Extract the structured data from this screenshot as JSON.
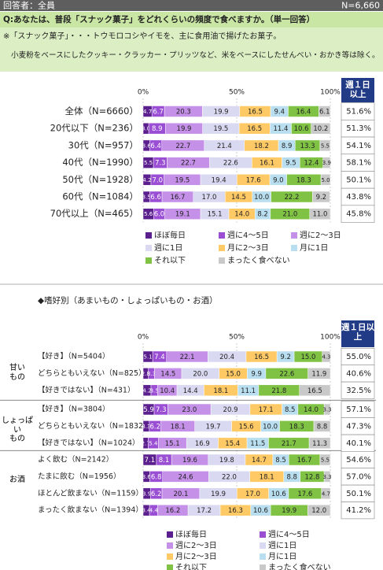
{
  "header": {
    "respondents": "回答者：全員",
    "n": "N=6,660"
  },
  "question": {
    "text": "Q:あなたは、普段「スナック菓子」をどれくらいの頻度で食べますか。（単一回答）",
    "note1": "※「スナック菓子」・・・トウモロコシやイモを、主に食用油で揚げたお菓子。",
    "note2": "小麦粉をベースにしたクッキー・クラッカー・プリッツなど、米をベースにしたせんべい・おかき等は除く。"
  },
  "chart_data": [
    {
      "type": "bar",
      "stacked": true,
      "orientation": "horizontal",
      "categories": [
        "全体（N=6660）",
        "20代以下（N=236）",
        "30代（N=957）",
        "40代（N=1990）",
        "50代（N=1928）",
        "60代（N=1084）",
        "70代以上（N=465）"
      ],
      "xlim": [
        0,
        100
      ],
      "xticks": [
        {
          "value": 0,
          "label": "0%"
        },
        {
          "value": 50,
          "label": "50%"
        },
        {
          "value": 100,
          "label": "100%"
        }
      ],
      "series": [
        {
          "name": "ほぼ毎日",
          "color": "#5b1f8e",
          "values": [
            4.7,
            3.0,
            3.6,
            5.5,
            4.2,
            3.5,
            5.6
          ],
          "value_labels": [
            "4.7",
            "3.0",
            "3.6",
            "5.5",
            "4.2",
            "3.5",
            "5.6"
          ]
        },
        {
          "name": "週に4～5日",
          "color": "#9a4ed4",
          "values": [
            6.7,
            8.9,
            6.4,
            7.3,
            7.0,
            6.6,
            6.0
          ],
          "value_labels": [
            "6.7",
            "8.9",
            "6.4",
            "7.3",
            "7.0",
            "6.6",
            "6.0"
          ]
        },
        {
          "name": "週に2～3日",
          "color": "#c590e8",
          "values": [
            20.3,
            19.9,
            22.7,
            22.7,
            19.5,
            16.7,
            19.1
          ],
          "value_labels": [
            "20.3",
            "19.9",
            "22.7",
            "22.7",
            "19.5",
            "16.7",
            "19.1"
          ]
        },
        {
          "name": "週に1日",
          "color": "#d9d9f2",
          "values": [
            19.9,
            19.5,
            21.4,
            22.6,
            19.4,
            17.0,
            15.1
          ],
          "value_labels": [
            "19.9",
            "19.5",
            "21.4",
            "22.6",
            "19.4",
            "17.0",
            "15.1"
          ]
        },
        {
          "name": "月に2～3日",
          "color": "#ffca66",
          "values": [
            16.5,
            16.5,
            18.2,
            16.1,
            17.6,
            14.5,
            14.0
          ],
          "value_labels": [
            "16.5",
            "16.5",
            "18.2",
            "16.1",
            "17.6",
            "14.5",
            "14.0"
          ]
        },
        {
          "name": "月に1日",
          "color": "#b8def0",
          "values": [
            9.4,
            11.4,
            8.9,
            9.5,
            9.0,
            10.0,
            8.2
          ],
          "value_labels": [
            "9.4",
            "11.4",
            "8.9",
            "9.5",
            "9.0",
            "10.0",
            "8.2"
          ]
        },
        {
          "name": "それ以下",
          "color": "#7fc244",
          "values": [
            16.4,
            10.6,
            13.3,
            12.4,
            18.3,
            22.2,
            21.0
          ],
          "value_labels": [
            "16.4",
            "10.6",
            "13.3",
            "12.4",
            "18.3",
            "22.2",
            "21.0"
          ]
        },
        {
          "name": "まったく食べない",
          "color": "#c9c9c9",
          "values": [
            6.1,
            10.2,
            5.5,
            3.9,
            5.0,
            9.2,
            11.0
          ],
          "value_labels": [
            "6.1",
            "10.2",
            "5.5",
            "3.9",
            "5.0",
            "9.2",
            "11.0"
          ]
        }
      ],
      "summary": {
        "title": "週１日以上",
        "values": [
          51.6,
          51.3,
          54.1,
          58.1,
          50.1,
          43.8,
          45.8
        ],
        "value_labels": [
          "51.6%",
          "51.3%",
          "54.1%",
          "58.1%",
          "50.1%",
          "43.8%",
          "45.8%"
        ]
      }
    },
    {
      "type": "bar",
      "stacked": true,
      "orientation": "horizontal",
      "title": "◆嗜好別（あまいもの・しょっぱいもの・お酒）",
      "groups": [
        "甘い\nもの",
        "しょっぱい\nもの",
        "お酒"
      ],
      "categories": [
        "【好き】（N=5404）",
        "どちらともいえない（N=825）",
        "【好きではない】（N=431）",
        "【好き】（N=3804）",
        "どちらともいえない（N=1832）",
        "【好きではない】（N=1024）",
        "よく飲む（N=2142）",
        "たまに飲む（N=1956）",
        "ほとんど飲まない（N=1159）",
        "まったく飲まない（N=1394）"
      ],
      "xlim": [
        0,
        100
      ],
      "xticks": [
        {
          "value": 0,
          "label": "0%"
        },
        {
          "value": 50,
          "label": "50%"
        },
        {
          "value": 100,
          "label": "100%"
        }
      ],
      "series": [
        {
          "name": "ほぼ毎日",
          "color": "#5b1f8e",
          "values": [
            5.1,
            2.8,
            4.2,
            5.9,
            3.3,
            2.7,
            7.1,
            3.6,
            3.9,
            3.4
          ],
          "value_labels": [
            "5.1",
            "2.8",
            "4.2",
            "5.9",
            "3.3",
            "2.7",
            "7.1",
            "3.6",
            "3.9",
            "3.4"
          ]
        },
        {
          "name": "週に4～5日",
          "color": "#9a4ed4",
          "values": [
            7.4,
            3.3,
            3.5,
            7.3,
            6.2,
            5.4,
            8.1,
            6.8,
            6.2,
            4.4
          ],
          "value_labels": [
            "7.4",
            "3.3",
            "3.5",
            "7.3",
            "6.2",
            "5.4",
            "8.1",
            "6.8",
            "6.2",
            "4.4"
          ]
        },
        {
          "name": "週に2～3日",
          "color": "#c590e8",
          "values": [
            22.1,
            14.5,
            10.4,
            23.0,
            18.1,
            15.1,
            19.6,
            24.6,
            20.1,
            16.2
          ],
          "value_labels": [
            "22.1",
            "14.5",
            "10.4",
            "23.0",
            "18.1",
            "15.1",
            "19.6",
            "24.6",
            "20.1",
            "16.2"
          ]
        },
        {
          "name": "週に1日",
          "color": "#d9d9f2",
          "values": [
            20.4,
            20.0,
            14.4,
            20.9,
            19.7,
            16.9,
            19.8,
            22.0,
            19.9,
            17.2
          ],
          "value_labels": [
            "20.4",
            "20.0",
            "14.4",
            "20.9",
            "19.7",
            "16.9",
            "19.8",
            "22.0",
            "19.9",
            "17.2"
          ]
        },
        {
          "name": "月に2～3日",
          "color": "#ffca66",
          "values": [
            16.5,
            15.0,
            18.1,
            17.1,
            15.6,
            15.4,
            14.7,
            18.1,
            17.0,
            16.3
          ],
          "value_labels": [
            "16.5",
            "15.0",
            "18.1",
            "17.1",
            "15.6",
            "15.4",
            "14.7",
            "18.1",
            "17.0",
            "16.3"
          ]
        },
        {
          "name": "月に1日",
          "color": "#b8def0",
          "values": [
            9.2,
            9.9,
            11.1,
            8.5,
            10.0,
            11.5,
            8.5,
            8.8,
            10.6,
            10.6
          ],
          "value_labels": [
            "9.2",
            "9.9",
            "11.1",
            "8.5",
            "10.0",
            "11.5",
            "8.5",
            "8.8",
            "10.6",
            "10.6"
          ]
        },
        {
          "name": "それ以下",
          "color": "#7fc244",
          "values": [
            15.0,
            22.6,
            21.8,
            14.0,
            18.3,
            21.7,
            16.7,
            12.8,
            17.6,
            19.9
          ],
          "value_labels": [
            "15.0",
            "22.6",
            "21.8",
            "14.0",
            "18.3",
            "21.7",
            "16.7",
            "12.8",
            "17.6",
            "19.9"
          ]
        },
        {
          "name": "まったく食べない",
          "color": "#c9c9c9",
          "values": [
            4.3,
            11.9,
            16.5,
            3.3,
            8.8,
            11.3,
            5.5,
            3.3,
            4.7,
            12.0
          ],
          "value_labels": [
            "4.3",
            "11.9",
            "16.5",
            "3.3",
            "8.8",
            "11.3",
            "5.5",
            "3.3",
            "4.7",
            "12.0"
          ]
        }
      ],
      "summary": {
        "title": "週１日以上",
        "values": [
          55.0,
          40.6,
          32.5,
          57.1,
          47.3,
          40.1,
          54.6,
          57.0,
          50.1,
          41.2
        ],
        "value_labels": [
          "55.0%",
          "40.6%",
          "32.5%",
          "57.1%",
          "47.3%",
          "40.1%",
          "54.6%",
          "57.0%",
          "50.1%",
          "41.2%"
        ]
      }
    }
  ]
}
